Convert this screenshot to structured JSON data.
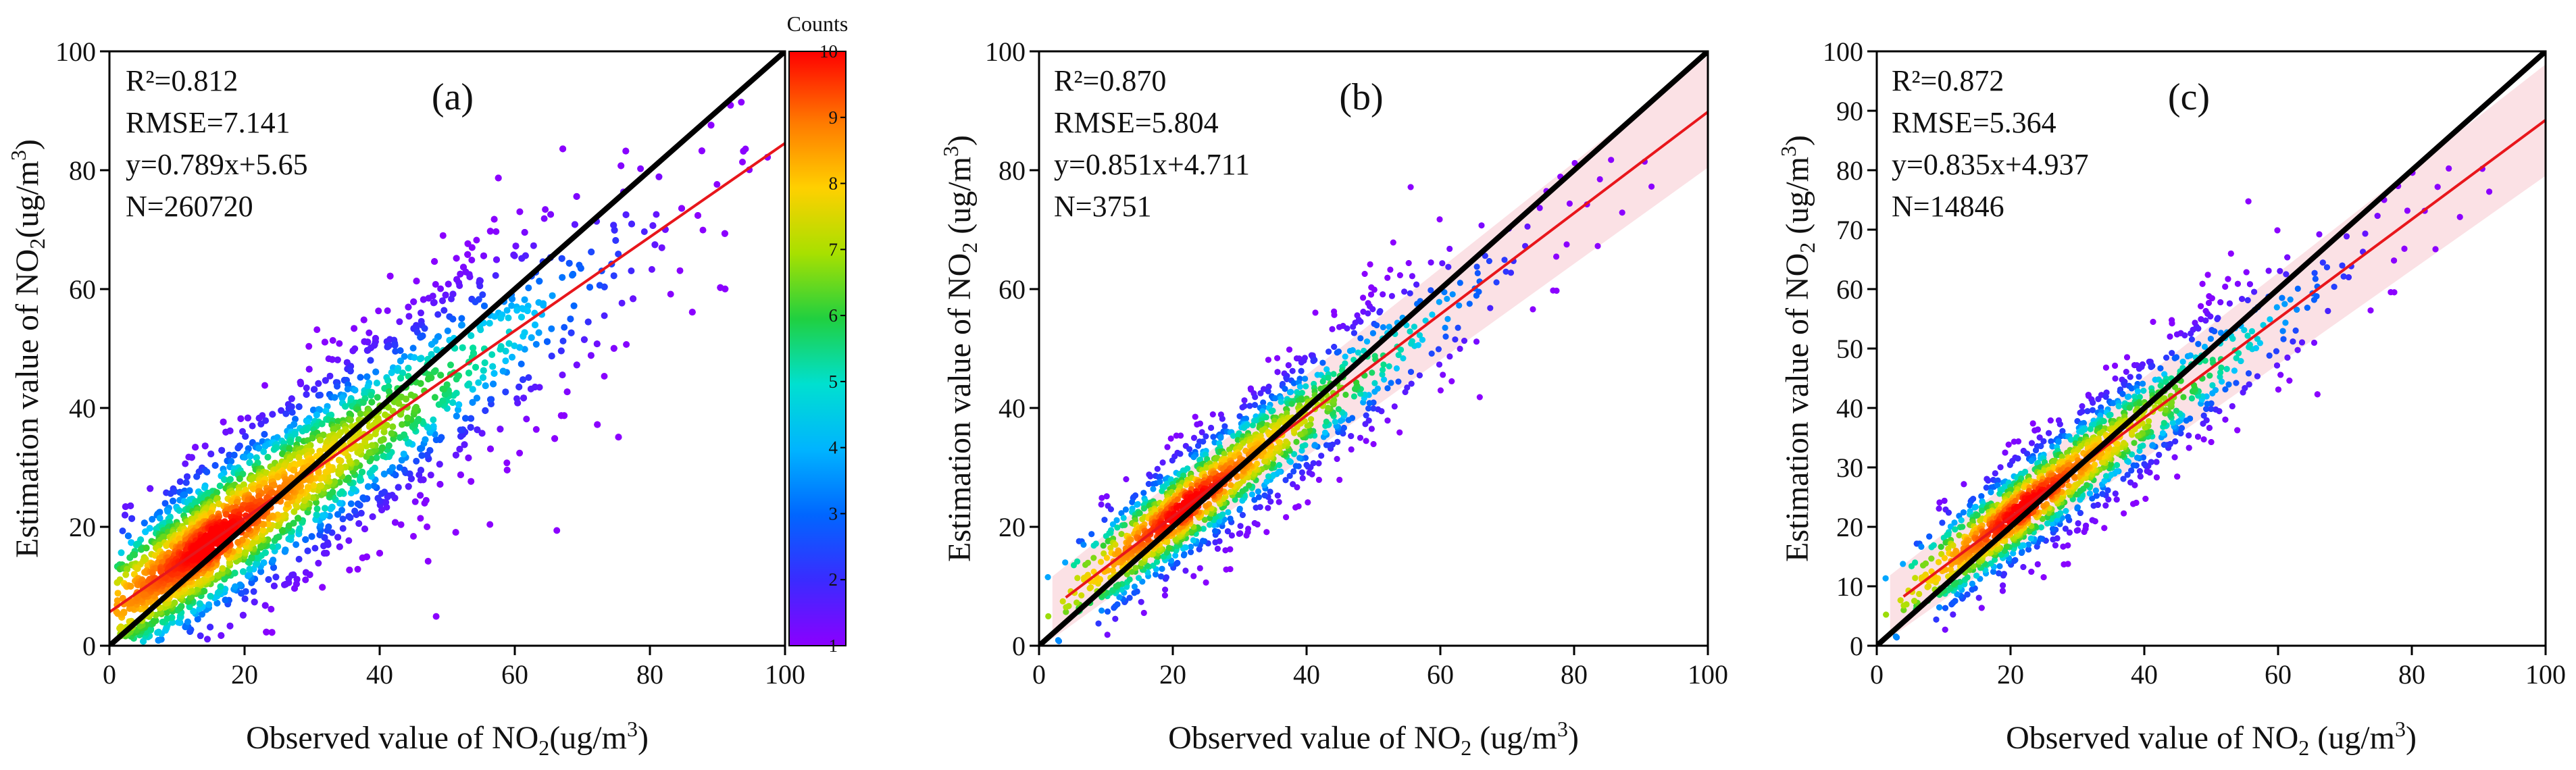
{
  "chart_data": [
    {
      "type": "scatter",
      "panel_label": "(a)",
      "xlabel": "Observed value of NO",
      "xlabel_sub": "2",
      "xlabel_tail": "(ug/m",
      "xlabel_sup": "3",
      "xlabel_close": ")",
      "ylabel": "Estimation value of NO",
      "ylabel_sub": "2",
      "ylabel_tail": "(ug/m",
      "ylabel_sup": "3",
      "ylabel_close": ")",
      "xlim": [
        0,
        100
      ],
      "ylim": [
        0,
        100
      ],
      "xticks": [
        "0",
        "20",
        "40",
        "60",
        "80",
        "100"
      ],
      "yticks": [
        "0",
        "20",
        "40",
        "60",
        "80",
        "100"
      ],
      "stats": [
        "R²=0.812",
        "RMSE=7.141",
        "y=0.789x+5.65",
        "N=260720"
      ],
      "fit": {
        "slope": 0.789,
        "intercept": 5.65
      },
      "confidence_band": false,
      "density": {
        "spread": 8.5,
        "n_points": 5200
      },
      "colors": {
        "fit": "#e8161b",
        "identity": "#000000"
      }
    },
    {
      "type": "scatter",
      "panel_label": "(b)",
      "xlabel": "Observed value of NO",
      "xlabel_sub": "2",
      "xlabel_tail": " (ug/m",
      "xlabel_sup": "3",
      "xlabel_close": ")",
      "ylabel": "Estimation value of NO",
      "ylabel_sub": "2",
      "ylabel_tail": " (ug/m",
      "ylabel_sup": "3",
      "ylabel_close": ")",
      "xlim": [
        0,
        100
      ],
      "ylim": [
        0,
        100
      ],
      "xticks": [
        "0",
        "20",
        "40",
        "60",
        "80",
        "100"
      ],
      "yticks": [
        "0",
        "20",
        "40",
        "60",
        "80",
        "100"
      ],
      "stats": [
        "R²=0.870",
        "RMSE=5.804",
        "y=0.851x+4.711",
        "N=3751"
      ],
      "fit": {
        "slope": 0.851,
        "intercept": 4.711
      },
      "confidence_band": true,
      "density": {
        "spread": 5.8,
        "n_points": 3200
      },
      "colors": {
        "fit": "#e8161b",
        "identity": "#000000",
        "band": "#f7c9cf"
      }
    },
    {
      "type": "scatter",
      "panel_label": "(c)",
      "xlabel": "Observed value of NO",
      "xlabel_sub": "2",
      "xlabel_tail": " (ug/m",
      "xlabel_sup": "3",
      "xlabel_close": ")",
      "ylabel": "Estimation value of NO",
      "ylabel_sub": "2",
      "ylabel_tail": " (ug/m",
      "ylabel_sup": "3",
      "ylabel_close": ")",
      "xlim": [
        0,
        100
      ],
      "ylim": [
        0,
        100
      ],
      "xticks": [
        "0",
        "20",
        "40",
        "60",
        "80",
        "100"
      ],
      "yticks": [
        "0",
        "10",
        "20",
        "30",
        "40",
        "50",
        "60",
        "70",
        "80",
        "90",
        "100"
      ],
      "stats": [
        "R²=0.872",
        "RMSE=5.364",
        "y=0.835x+4.937",
        "N=14846"
      ],
      "fit": {
        "slope": 0.835,
        "intercept": 4.937
      },
      "confidence_band": true,
      "density": {
        "spread": 5.4,
        "n_points": 4500
      },
      "colors": {
        "fit": "#e8161b",
        "identity": "#000000",
        "band": "#f7c9cf"
      }
    }
  ],
  "colorbar": {
    "title": "Counts",
    "range": [
      1,
      10
    ],
    "ticks": [
      "1",
      "2",
      "3",
      "4",
      "5",
      "6",
      "7",
      "8",
      "9",
      "10"
    ],
    "colors": [
      "#8b00ff",
      "#3a2bff",
      "#0066ff",
      "#00c8ff",
      "#00e0a0",
      "#30d030",
      "#b8e000",
      "#ffd000",
      "#ff7a00",
      "#ff0000"
    ]
  }
}
